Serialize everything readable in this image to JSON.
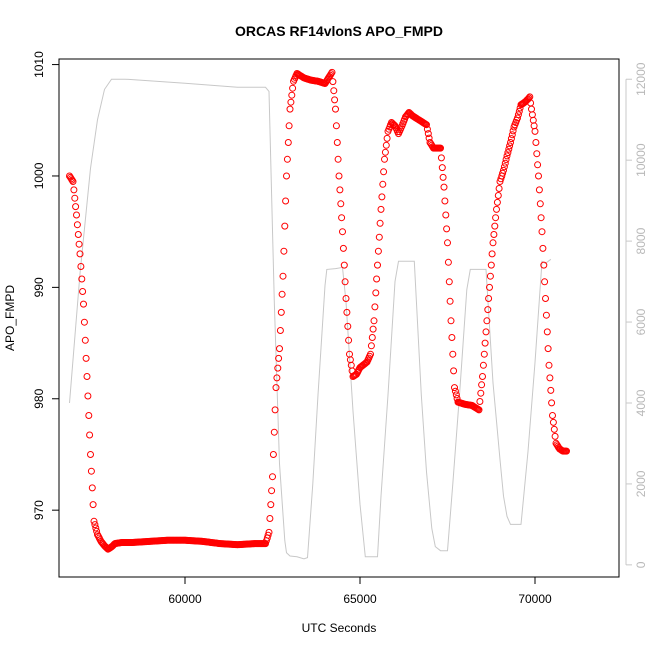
{
  "chart_data": {
    "type": "scatter",
    "title": "ORCAS RF14vlonS APO_FMPD",
    "xlabel": "UTC Seconds",
    "ylabel": "APO_FMPD",
    "xlim": [
      56400,
      72400
    ],
    "ylim": [
      964,
      1010.5
    ],
    "x_ticks": [
      60000,
      65000,
      70000
    ],
    "y_ticks": [
      970,
      980,
      990,
      1000,
      1010
    ],
    "y2lim": [
      -300,
      12500
    ],
    "y2_ticks": [
      0,
      2000,
      4000,
      6000,
      8000,
      10000,
      12000
    ],
    "grid": false,
    "colors": {
      "points": "#ff0000",
      "altitude": "#c8c8c8"
    },
    "series": [
      {
        "marker": "open-circle",
        "axis": "left",
        "points": [
          [
            56700,
            1000
          ],
          [
            56800,
            999.5
          ],
          [
            56900,
            996.5
          ],
          [
            57000,
            993
          ],
          [
            57100,
            988.5
          ],
          [
            57200,
            982
          ],
          [
            57300,
            975
          ],
          [
            57400,
            969
          ],
          [
            57500,
            967.8
          ],
          [
            57600,
            967.2
          ],
          [
            57700,
            966.8
          ],
          [
            57800,
            966.5
          ],
          [
            57900,
            966.7
          ],
          [
            58000,
            967
          ],
          [
            58200,
            967.1
          ],
          [
            58500,
            967.1
          ],
          [
            59000,
            967.2
          ],
          [
            59500,
            967.3
          ],
          [
            60000,
            967.3
          ],
          [
            60500,
            967.2
          ],
          [
            61000,
            967
          ],
          [
            61500,
            966.9
          ],
          [
            62000,
            967
          ],
          [
            62300,
            967
          ],
          [
            62400,
            968
          ],
          [
            62500,
            973
          ],
          [
            62600,
            981
          ],
          [
            62700,
            984.5
          ],
          [
            62800,
            991
          ],
          [
            62900,
            1000
          ],
          [
            63000,
            1006
          ],
          [
            63100,
            1008.5
          ],
          [
            63200,
            1009.2
          ],
          [
            63400,
            1008.8
          ],
          [
            63600,
            1008.6
          ],
          [
            63800,
            1008.5
          ],
          [
            64000,
            1008.3
          ],
          [
            64200,
            1009.3
          ],
          [
            64300,
            1006
          ],
          [
            64400,
            1000
          ],
          [
            64500,
            995
          ],
          [
            64600,
            989
          ],
          [
            64700,
            984
          ],
          [
            64800,
            982
          ],
          [
            64900,
            982.2
          ],
          [
            65000,
            982.8
          ],
          [
            65200,
            983.3
          ],
          [
            65300,
            984
          ],
          [
            65400,
            987
          ],
          [
            65500,
            992
          ],
          [
            65600,
            997
          ],
          [
            65700,
            1001.5
          ],
          [
            65800,
            1004
          ],
          [
            65900,
            1004.8
          ],
          [
            66000,
            1004.5
          ],
          [
            66100,
            1003.8
          ],
          [
            66200,
            1004.5
          ],
          [
            66300,
            1005.3
          ],
          [
            66400,
            1005.7
          ],
          [
            66500,
            1005.4
          ],
          [
            66700,
            1005
          ],
          [
            66900,
            1004.6
          ],
          [
            67000,
            1003
          ],
          [
            67100,
            1002.5
          ],
          [
            67300,
            1002.5
          ],
          [
            67400,
            999
          ],
          [
            67500,
            994
          ],
          [
            67600,
            987
          ],
          [
            67700,
            981
          ],
          [
            67800,
            979.7
          ],
          [
            68000,
            979.5
          ],
          [
            68200,
            979.4
          ],
          [
            68300,
            979.2
          ],
          [
            68400,
            979
          ],
          [
            68500,
            982
          ],
          [
            68600,
            986
          ],
          [
            68700,
            990
          ],
          [
            68800,
            994
          ],
          [
            68900,
            997
          ],
          [
            69000,
            999.5
          ],
          [
            69100,
            1000.5
          ],
          [
            69200,
            1001.8
          ],
          [
            69300,
            1003
          ],
          [
            69400,
            1004.4
          ],
          [
            69500,
            1005.2
          ],
          [
            69600,
            1006.4
          ],
          [
            69700,
            1006.6
          ],
          [
            69800,
            1006.9
          ],
          [
            69850,
            1007.1
          ],
          [
            69900,
            1006
          ],
          [
            70000,
            1004
          ],
          [
            70100,
            1000
          ],
          [
            70200,
            995
          ],
          [
            70300,
            989
          ],
          [
            70400,
            983
          ],
          [
            70500,
            978.5
          ],
          [
            70600,
            976
          ],
          [
            70700,
            975.5
          ],
          [
            70800,
            975.3
          ],
          [
            70900,
            975.3
          ]
        ]
      },
      {
        "marker": "line",
        "axis": "right",
        "points": [
          [
            56700,
            4000
          ],
          [
            57000,
            7200
          ],
          [
            57300,
            9800
          ],
          [
            57500,
            11000
          ],
          [
            57700,
            11750
          ],
          [
            57900,
            12000
          ],
          [
            58300,
            12000
          ],
          [
            60000,
            11900
          ],
          [
            61500,
            11800
          ],
          [
            62300,
            11800
          ],
          [
            62400,
            11700
          ],
          [
            62550,
            6500
          ],
          [
            62700,
            2500
          ],
          [
            62850,
            600
          ],
          [
            62900,
            300
          ],
          [
            63000,
            220
          ],
          [
            63200,
            200
          ],
          [
            63400,
            150
          ],
          [
            63500,
            180
          ],
          [
            63650,
            2000
          ],
          [
            63800,
            4200
          ],
          [
            64000,
            6900
          ],
          [
            64050,
            7300
          ],
          [
            64300,
            7320
          ],
          [
            64500,
            7350
          ],
          [
            64600,
            6500
          ],
          [
            64800,
            3800
          ],
          [
            65000,
            1500
          ],
          [
            65150,
            200
          ],
          [
            65500,
            200
          ],
          [
            65600,
            1700
          ],
          [
            65800,
            4200
          ],
          [
            66000,
            7000
          ],
          [
            66100,
            7500
          ],
          [
            66550,
            7500
          ],
          [
            66750,
            4200
          ],
          [
            66900,
            2300
          ],
          [
            67050,
            900
          ],
          [
            67150,
            450
          ],
          [
            67300,
            350
          ],
          [
            67500,
            350
          ],
          [
            67650,
            2000
          ],
          [
            67850,
            4300
          ],
          [
            68050,
            6800
          ],
          [
            68150,
            7300
          ],
          [
            68600,
            7300
          ],
          [
            68800,
            4500
          ],
          [
            69000,
            2600
          ],
          [
            69100,
            1700
          ],
          [
            69200,
            1200
          ],
          [
            69300,
            1000
          ],
          [
            69600,
            1000
          ],
          [
            69800,
            2800
          ],
          [
            70000,
            5000
          ],
          [
            70200,
            7500
          ],
          [
            70300,
            7450
          ],
          [
            70450,
            7550
          ]
        ]
      }
    ]
  }
}
